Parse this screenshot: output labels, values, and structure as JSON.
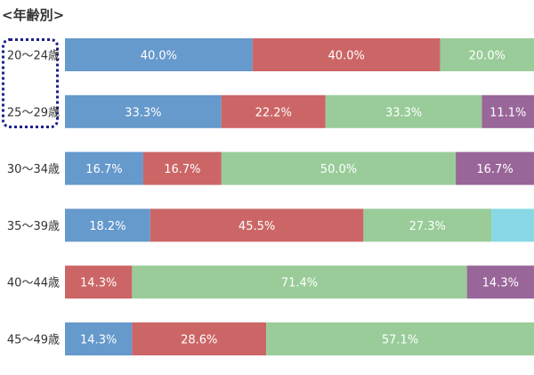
{
  "title": "<年齢別>",
  "chart_data": {
    "type": "bar",
    "orientation": "horizontal",
    "stacked": true,
    "normalized": true,
    "categories": [
      "20〜24歳",
      "25〜29歳",
      "30〜34歳",
      "35〜39歳",
      "40〜44歳",
      "45〜49歳"
    ],
    "series": [
      {
        "color": "#6699cc",
        "values": [
          40.0,
          33.3,
          16.7,
          18.2,
          0.0,
          14.3
        ],
        "labels": [
          "40.0%",
          "33.3%",
          "16.7%",
          "18.2%",
          "",
          "14.3%"
        ]
      },
      {
        "color": "#cc6666",
        "values": [
          40.0,
          22.2,
          16.7,
          45.5,
          14.3,
          28.6
        ],
        "labels": [
          "40.0%",
          "22.2%",
          "16.7%",
          "45.5%",
          "14.3%",
          "28.6%"
        ]
      },
      {
        "color": "#99cc99",
        "values": [
          20.0,
          33.3,
          50.0,
          27.3,
          71.4,
          57.1
        ],
        "labels": [
          "20.0%",
          "33.3%",
          "50.0%",
          "27.3%",
          "71.4%",
          "57.1%"
        ]
      },
      {
        "color": "#996699",
        "values": [
          0.0,
          11.1,
          16.7,
          0.0,
          14.3,
          0.0
        ],
        "labels": [
          "",
          "11.1%",
          "16.7%",
          "",
          "14.3%",
          ""
        ]
      },
      {
        "color": "#88d8e6",
        "values": [
          0.0,
          0.0,
          0.0,
          9.1,
          0.0,
          0.0
        ],
        "labels": [
          "",
          "",
          "",
          "",
          "",
          ""
        ]
      }
    ],
    "highlighted_category": "20〜24歳",
    "highlight_color": "#1a1f8c",
    "grid": false,
    "legend": "none"
  }
}
